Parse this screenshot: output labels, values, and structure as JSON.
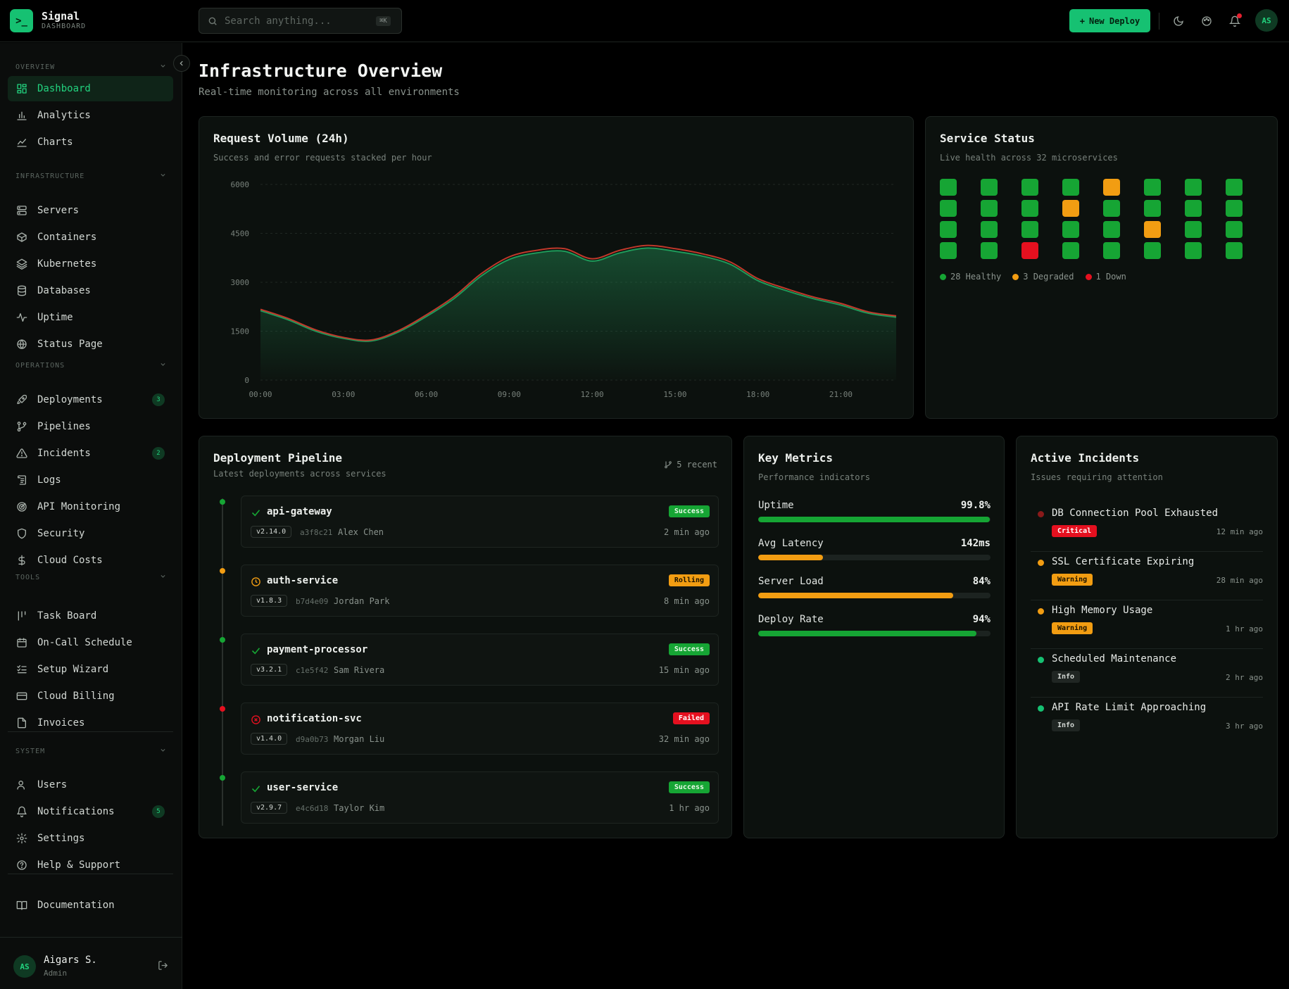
{
  "brand": {
    "name": "Signal",
    "subtitle": "DASHBOARD",
    "logo_glyph": ">_"
  },
  "search": {
    "placeholder": "Search anything...",
    "shortcut": "⌘K"
  },
  "header": {
    "new_deploy_label": "New Deploy",
    "avatar_initials": "AS"
  },
  "sidebar": {
    "sections": [
      {
        "label": "OVERVIEW"
      },
      {
        "label": "INFRASTRUCTURE"
      },
      {
        "label": "OPERATIONS"
      },
      {
        "label": "TOOLS"
      },
      {
        "label": "SYSTEM"
      }
    ],
    "items": [
      {
        "label": "Dashboard",
        "icon": "grid-icon"
      },
      {
        "label": "Analytics",
        "icon": "bar-chart-icon"
      },
      {
        "label": "Charts",
        "icon": "line-chart-icon"
      },
      {
        "label": "Servers",
        "icon": "server-icon"
      },
      {
        "label": "Containers",
        "icon": "box-icon"
      },
      {
        "label": "Kubernetes",
        "icon": "layers-icon"
      },
      {
        "label": "Databases",
        "icon": "database-icon"
      },
      {
        "label": "Uptime",
        "icon": "activity-icon"
      },
      {
        "label": "Status Page",
        "icon": "globe-icon"
      },
      {
        "label": "Deployments",
        "icon": "rocket-icon",
        "badge": "3"
      },
      {
        "label": "Pipelines",
        "icon": "git-branch-icon"
      },
      {
        "label": "Incidents",
        "icon": "alert-triangle-icon",
        "badge": "2"
      },
      {
        "label": "Logs",
        "icon": "scroll-icon"
      },
      {
        "label": "API Monitoring",
        "icon": "radar-icon"
      },
      {
        "label": "Security",
        "icon": "shield-icon"
      },
      {
        "label": "Cloud Costs",
        "icon": "dollar-icon"
      },
      {
        "label": "Task Board",
        "icon": "kanban-icon"
      },
      {
        "label": "On-Call Schedule",
        "icon": "calendar-icon"
      },
      {
        "label": "Setup Wizard",
        "icon": "list-checks-icon"
      },
      {
        "label": "Cloud Billing",
        "icon": "credit-card-icon"
      },
      {
        "label": "Invoices",
        "icon": "file-icon"
      },
      {
        "label": "Users",
        "icon": "user-icon"
      },
      {
        "label": "Notifications",
        "icon": "bell-icon",
        "badge": "5"
      },
      {
        "label": "Settings",
        "icon": "gear-icon"
      },
      {
        "label": "Help & Support",
        "icon": "help-circle-icon"
      },
      {
        "label": "Documentation",
        "icon": "book-icon"
      }
    ],
    "user": {
      "initials": "AS",
      "name": "Aigars S.",
      "role": "Admin"
    }
  },
  "page": {
    "title": "Infrastructure Overview",
    "subtitle": "Real-time monitoring across all environments"
  },
  "request_volume": {
    "title": "Request Volume (24h)",
    "subtitle": "Success and error requests stacked per hour"
  },
  "chart_data": {
    "type": "area",
    "title": "Request Volume (24h)",
    "subtitle": "Success and error requests stacked per hour",
    "x_ticks": [
      "00:00",
      "03:00",
      "06:00",
      "09:00",
      "12:00",
      "15:00",
      "18:00",
      "21:00"
    ],
    "y_ticks": [
      "0",
      "1500",
      "3000",
      "4500",
      "6000"
    ],
    "ylim": [
      0,
      6000
    ],
    "x": [
      0,
      1,
      2,
      3,
      4,
      5,
      6,
      7,
      8,
      9,
      10,
      11,
      12,
      13,
      14,
      15,
      16,
      17,
      18,
      19,
      20,
      21,
      22,
      23
    ],
    "series": [
      {
        "values": [
          2130,
          1850,
          1500,
          1280,
          1200,
          1480,
          1950,
          2500,
          3200,
          3700,
          3900,
          3950,
          3650,
          3900,
          4050,
          3950,
          3800,
          3550,
          3050,
          2750,
          2500,
          2300,
          2050,
          1930
        ]
      },
      {
        "values": [
          40,
          40,
          40,
          30,
          30,
          40,
          50,
          60,
          70,
          80,
          80,
          80,
          70,
          80,
          80,
          80,
          70,
          70,
          60,
          60,
          50,
          50,
          40,
          40
        ]
      }
    ],
    "grid": true,
    "colors": {
      "success": "#1f7a4a",
      "error": "#c0392b"
    }
  },
  "service_status": {
    "title": "Service Status",
    "subtitle": "Live health across 32 microservices",
    "grid": [
      [
        "healthy",
        "healthy",
        "healthy",
        "healthy",
        "degraded",
        "healthy",
        "healthy",
        "healthy"
      ],
      [
        "healthy",
        "healthy",
        "healthy",
        "degraded",
        "healthy",
        "healthy",
        "healthy",
        "healthy"
      ],
      [
        "healthy",
        "healthy",
        "healthy",
        "healthy",
        "healthy",
        "degraded",
        "healthy",
        "healthy"
      ],
      [
        "healthy",
        "healthy",
        "down",
        "healthy",
        "healthy",
        "healthy",
        "healthy",
        "healthy"
      ]
    ],
    "colors": {
      "healthy": "#16a534",
      "degraded": "#f29d12",
      "down": "#e5101f"
    },
    "legend": {
      "healthy": "28 Healthy",
      "degraded": "3 Degraded",
      "down": "1 Down"
    }
  },
  "pipeline": {
    "title": "Deployment Pipeline",
    "subtitle": "Latest deployments across services",
    "recent": "5 recent",
    "items": [
      {
        "name": "api-gateway",
        "version": "v2.14.0",
        "hash": "a3f8c21",
        "author": "Alex Chen",
        "status": "Success",
        "ago": "2 min ago",
        "state": "success"
      },
      {
        "name": "auth-service",
        "version": "v1.8.3",
        "hash": "b7d4e09",
        "author": "Jordan Park",
        "status": "Rolling",
        "ago": "8 min ago",
        "state": "rolling"
      },
      {
        "name": "payment-processor",
        "version": "v3.2.1",
        "hash": "c1e5f42",
        "author": "Sam Rivera",
        "status": "Success",
        "ago": "15 min ago",
        "state": "success"
      },
      {
        "name": "notification-svc",
        "version": "v1.4.0",
        "hash": "d9a0b73",
        "author": "Morgan Liu",
        "status": "Failed",
        "ago": "32 min ago",
        "state": "failed"
      },
      {
        "name": "user-service",
        "version": "v2.9.7",
        "hash": "e4c6d18",
        "author": "Taylor Kim",
        "status": "Success",
        "ago": "1 hr ago",
        "state": "success"
      }
    ]
  },
  "metrics": {
    "title": "Key Metrics",
    "subtitle": "Performance indicators",
    "items": [
      {
        "label": "Uptime",
        "value": "99.8%",
        "fraction": 0.998,
        "color": "#16a534"
      },
      {
        "label": "Avg Latency",
        "value": "142ms",
        "fraction": 0.28,
        "color": "#f29d12"
      },
      {
        "label": "Server Load",
        "value": "84%",
        "fraction": 0.84,
        "color": "#f29d12"
      },
      {
        "label": "Deploy Rate",
        "value": "94%",
        "fraction": 0.94,
        "color": "#16a534"
      }
    ]
  },
  "incidents": {
    "title": "Active Incidents",
    "subtitle": "Issues requiring attention",
    "items": [
      {
        "title": "DB Connection Pool Exhausted",
        "severity": "Critical",
        "ago": "12 min ago",
        "dot": "#8a1a1a",
        "pill_bg": "#e5101f",
        "pill_fg": "#ffffff"
      },
      {
        "title": "SSL Certificate Expiring",
        "severity": "Warning",
        "ago": "28 min ago",
        "dot": "#f29d12",
        "pill_bg": "#f29d12",
        "pill_fg": "#1b1200"
      },
      {
        "title": "High Memory Usage",
        "severity": "Warning",
        "ago": "1 hr ago",
        "dot": "#f29d12",
        "pill_bg": "#f29d12",
        "pill_fg": "#1b1200"
      },
      {
        "title": "Scheduled Maintenance",
        "severity": "Info",
        "ago": "2 hr ago",
        "dot": "#16c172",
        "pill_bg": "#202623",
        "pill_fg": "#d3d8d4"
      },
      {
        "title": "API Rate Limit Approaching",
        "severity": "Info",
        "ago": "3 hr ago",
        "dot": "#16c172",
        "pill_bg": "#202623",
        "pill_fg": "#d3d8d4"
      }
    ]
  }
}
